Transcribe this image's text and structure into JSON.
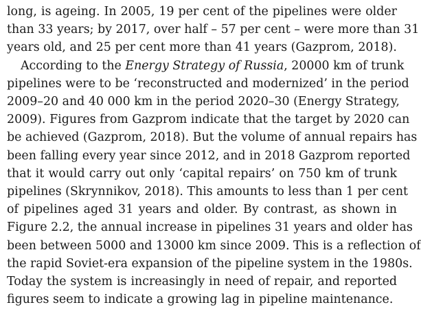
{
  "paragraphs": [
    {
      "lines": [
        "long, is ageing. In 2005, 19 per cent of the pipelines were older",
        "than 33 years; by 2017, over half – 57 per cent – were more than 31",
        "years old, and 25 per cent more than 41 years (Gazprom, 2018)."
      ]
    },
    {
      "line1_prefix": "According to the ",
      "line1_italic": "Energy Strategy of Russia",
      "line1_suffix": ", 20000 km of trunk",
      "lines_rest": [
        "pipelines were to be ‘reconstructed and modernized’ in the period",
        "2009–20 and 40 000 km in the period 2020–30 (Energy Strategy,",
        "2009). Figures from Gazprom indicate that the target by 2020 can",
        "be achieved (Gazprom, 2018). But the volume of annual repairs has",
        "been falling every year since 2012, and in 2018 Gazprom reported",
        "that it would carry out only ‘capital repairs’ on 750 km of trunk",
        "pipelines (Skrynnikov, 2018). This amounts to less than 1 per cent",
        "of pipelines aged 31 years and older. By contrast, as shown in",
        "Figure 2.2, the annual increase in pipelines 31 years and older has",
        "been between 5000 and 13000 km since 2009. This is a reflection of",
        "the rapid Soviet-era expansion of the pipeline system in the 1980s.",
        "Today the system is increasingly in need of repair, and reported",
        "figures seem to indicate a growing lag in pipeline maintenance."
      ]
    }
  ]
}
